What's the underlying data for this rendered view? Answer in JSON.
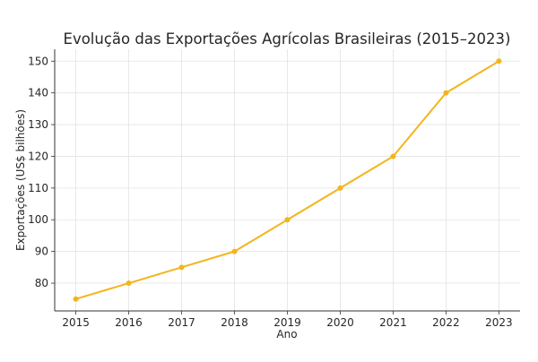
{
  "chart_data": {
    "type": "line",
    "title": "Evolução das Exportações Agrícolas Brasileiras (2015–2023)",
    "xlabel": "Ano",
    "ylabel": "Exportações (US$ bilhões)",
    "x": [
      2015,
      2016,
      2017,
      2018,
      2019,
      2020,
      2021,
      2022,
      2023
    ],
    "series": [
      {
        "values": [
          75,
          80,
          85,
          90,
          100,
          110,
          120,
          140,
          150
        ],
        "color": "#F4B41A",
        "marker": "circle"
      }
    ],
    "xticks": [
      "2015",
      "2016",
      "2017",
      "2018",
      "2019",
      "2020",
      "2021",
      "2022",
      "2023"
    ],
    "yticks": [
      "80",
      "90",
      "100",
      "110",
      "120",
      "130",
      "140",
      "150"
    ],
    "xlim": [
      2014.6,
      2023.4
    ],
    "ylim": [
      71.25,
      153.75
    ],
    "grid": true,
    "legend": "none"
  }
}
